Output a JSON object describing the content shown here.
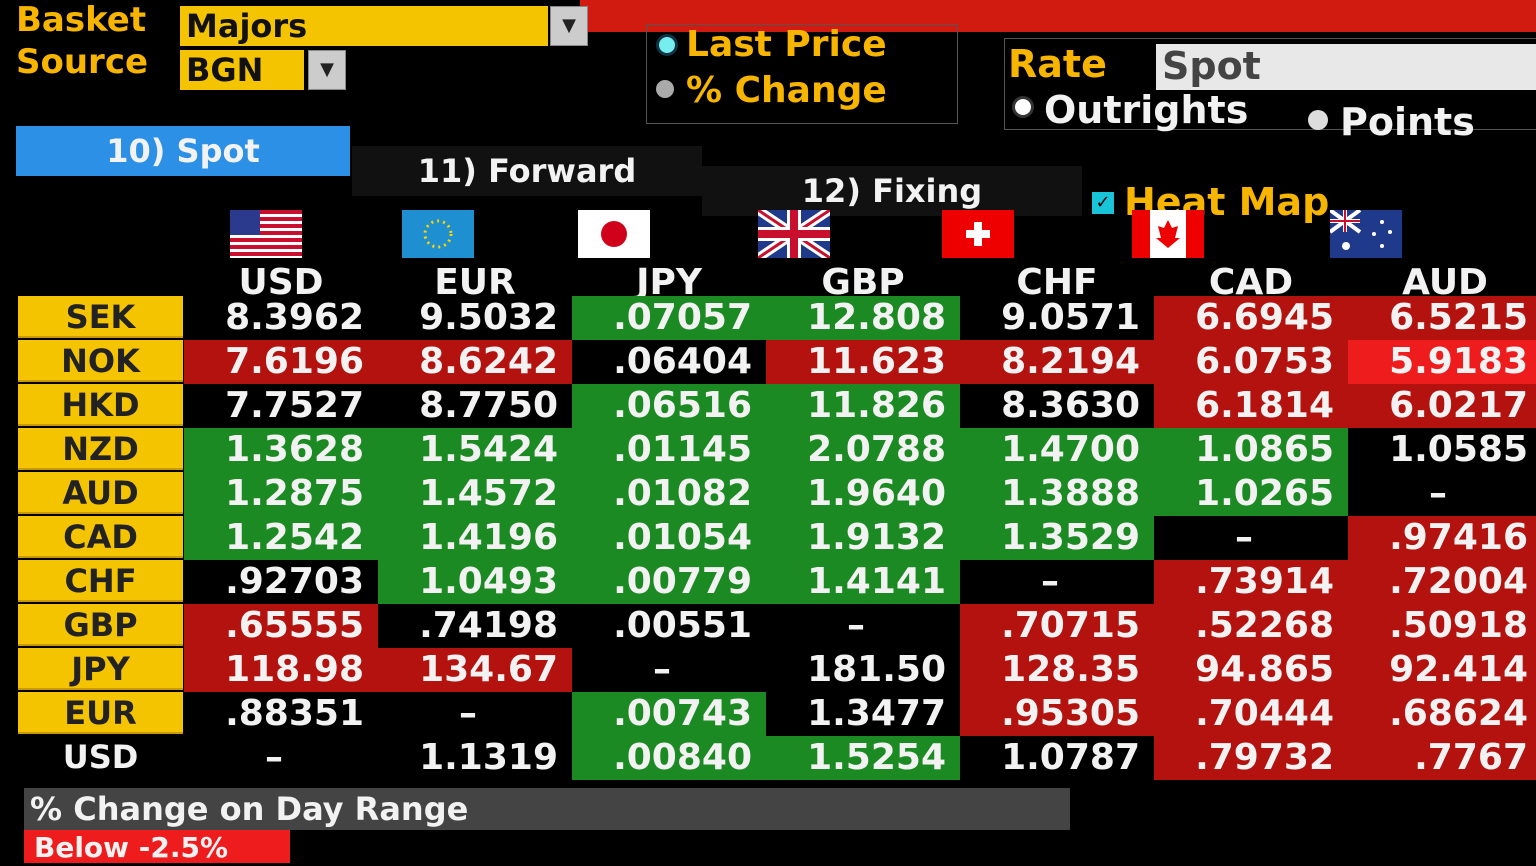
{
  "header": {
    "basket_label": "Basket",
    "basket_value": "Majors",
    "source_label": "Source",
    "source_value": "BGN",
    "display_options": [
      "Last Price",
      "% Change"
    ],
    "rate_label": "Rate",
    "rate_value": "Spot",
    "rate_options": [
      "Outrights",
      "Points"
    ]
  },
  "tabs": [
    "10) Spot",
    "11) Forward",
    "12) Fixing"
  ],
  "heat_map_label": "Heat Map",
  "table": {
    "columns": [
      "USD",
      "EUR",
      "JPY",
      "GBP",
      "CHF",
      "CAD",
      "AUD"
    ],
    "rows": [
      {
        "label": "SEK",
        "cells": [
          {
            "text": "8.3962",
            "color": "#000000"
          },
          {
            "text": "9.5032",
            "color": "#000000"
          },
          {
            "text": ".07057",
            "color": "#1b8a22"
          },
          {
            "text": "12.808",
            "color": "#1b8a22"
          },
          {
            "text": "9.0571",
            "color": "#000000"
          },
          {
            "text": "6.6945",
            "color": "#b3120f"
          },
          {
            "text": "6.5215",
            "color": "#b3120f"
          }
        ]
      },
      {
        "label": "NOK",
        "cells": [
          {
            "text": "7.6196",
            "color": "#b3120f"
          },
          {
            "text": "8.6242",
            "color": "#b3120f"
          },
          {
            "text": ".06404",
            "color": "#000000"
          },
          {
            "text": "11.623",
            "color": "#b3120f"
          },
          {
            "text": "8.2194",
            "color": "#b3120f"
          },
          {
            "text": "6.0753",
            "color": "#b3120f"
          },
          {
            "text": "5.9183",
            "color": "#ee1c1c"
          }
        ]
      },
      {
        "label": "HKD",
        "cells": [
          {
            "text": "7.7527",
            "color": "#000000"
          },
          {
            "text": "8.7750",
            "color": "#000000"
          },
          {
            "text": ".06516",
            "color": "#1b8a22"
          },
          {
            "text": "11.826",
            "color": "#1b8a22"
          },
          {
            "text": "8.3630",
            "color": "#000000"
          },
          {
            "text": "6.1814",
            "color": "#b3120f"
          },
          {
            "text": "6.0217",
            "color": "#b3120f"
          }
        ]
      },
      {
        "label": "NZD",
        "cells": [
          {
            "text": "1.3628",
            "color": "#1b8a22"
          },
          {
            "text": "1.5424",
            "color": "#1b8a22"
          },
          {
            "text": ".01145",
            "color": "#1b8a22"
          },
          {
            "text": "2.0788",
            "color": "#1b8a22"
          },
          {
            "text": "1.4700",
            "color": "#1b8a22"
          },
          {
            "text": "1.0865",
            "color": "#1b8a22"
          },
          {
            "text": "1.0585",
            "color": "#000000"
          }
        ]
      },
      {
        "label": "AUD",
        "cells": [
          {
            "text": "1.2875",
            "color": "#1b8a22"
          },
          {
            "text": "1.4572",
            "color": "#1b8a22"
          },
          {
            "text": ".01082",
            "color": "#1b8a22"
          },
          {
            "text": "1.9640",
            "color": "#1b8a22"
          },
          {
            "text": "1.3888",
            "color": "#1b8a22"
          },
          {
            "text": "1.0265",
            "color": "#1b8a22"
          },
          {
            "text": "–",
            "color": "#000000"
          }
        ]
      },
      {
        "label": "CAD",
        "cells": [
          {
            "text": "1.2542",
            "color": "#1b8a22"
          },
          {
            "text": "1.4196",
            "color": "#1b8a22"
          },
          {
            "text": ".01054",
            "color": "#1b8a22"
          },
          {
            "text": "1.9132",
            "color": "#1b8a22"
          },
          {
            "text": "1.3529",
            "color": "#1b8a22"
          },
          {
            "text": "–",
            "color": "#000000"
          },
          {
            "text": ".97416",
            "color": "#b3120f"
          }
        ]
      },
      {
        "label": "CHF",
        "cells": [
          {
            "text": ".92703",
            "color": "#000000"
          },
          {
            "text": "1.0493",
            "color": "#1b8a22"
          },
          {
            "text": ".00779",
            "color": "#1b8a22"
          },
          {
            "text": "1.4141",
            "color": "#1b8a22"
          },
          {
            "text": "–",
            "color": "#000000"
          },
          {
            "text": ".73914",
            "color": "#b3120f"
          },
          {
            "text": ".72004",
            "color": "#b3120f"
          }
        ]
      },
      {
        "label": "GBP",
        "cells": [
          {
            "text": ".65555",
            "color": "#b3120f"
          },
          {
            "text": ".74198",
            "color": "#000000"
          },
          {
            "text": ".00551",
            "color": "#000000"
          },
          {
            "text": "–",
            "color": "#000000"
          },
          {
            "text": ".70715",
            "color": "#b3120f"
          },
          {
            "text": ".52268",
            "color": "#b3120f"
          },
          {
            "text": ".50918",
            "color": "#b3120f"
          }
        ]
      },
      {
        "label": "JPY",
        "cells": [
          {
            "text": "118.98",
            "color": "#b3120f"
          },
          {
            "text": "134.67",
            "color": "#b3120f"
          },
          {
            "text": "–",
            "color": "#000000"
          },
          {
            "text": "181.50",
            "color": "#000000"
          },
          {
            "text": "128.35",
            "color": "#b3120f"
          },
          {
            "text": "94.865",
            "color": "#b3120f"
          },
          {
            "text": "92.414",
            "color": "#b3120f"
          }
        ]
      },
      {
        "label": "EUR",
        "cells": [
          {
            "text": ".88351",
            "color": "#000000"
          },
          {
            "text": "–",
            "color": "#000000"
          },
          {
            "text": ".00743",
            "color": "#1b8a22"
          },
          {
            "text": "1.3477",
            "color": "#000000"
          },
          {
            "text": ".95305",
            "color": "#b3120f"
          },
          {
            "text": ".70444",
            "color": "#b3120f"
          },
          {
            "text": ".68624",
            "color": "#b3120f"
          }
        ]
      },
      {
        "label": "USD",
        "cells": [
          {
            "text": "–",
            "color": "#000000"
          },
          {
            "text": "1.1319",
            "color": "#000000"
          },
          {
            "text": ".00840",
            "color": "#1b8a22"
          },
          {
            "text": "1.5254",
            "color": "#1b8a22"
          },
          {
            "text": "1.0787",
            "color": "#000000"
          },
          {
            "text": ".79732",
            "color": "#b3120f"
          },
          {
            "text": ".7767",
            "color": "#b3120f"
          }
        ]
      }
    ]
  },
  "footer": {
    "title": "% Change on Day Range",
    "legend": "Below -2.5%"
  }
}
